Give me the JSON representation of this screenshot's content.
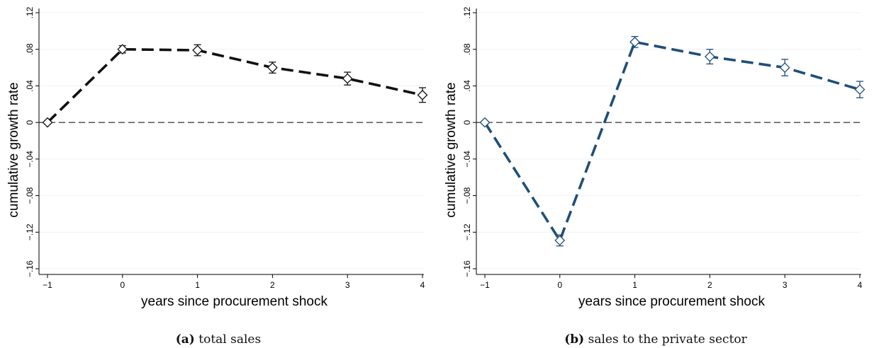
{
  "chart_data": [
    {
      "type": "line",
      "caption_tag": "(a)",
      "caption_text": "total sales",
      "xlabel": "years since procurement shock",
      "ylabel": "cumulative growth rate",
      "xlim": [
        -1,
        4
      ],
      "ylim": [
        -0.16,
        0.12
      ],
      "xticks": [
        -1,
        0,
        1,
        2,
        3,
        4
      ],
      "xtick_labels": [
        "−1",
        "0",
        "1",
        "2",
        "3",
        "4"
      ],
      "yticks": [
        -0.16,
        -0.12,
        -0.08,
        -0.04,
        0,
        0.04,
        0.08,
        0.12
      ],
      "ytick_labels": [
        "−.16",
        "−.12",
        "−.08",
        "−.04",
        "0",
        ".04",
        ".08",
        ".12"
      ],
      "reference_line_y": 0,
      "grid": true,
      "color": "#111111",
      "marker": "diamond",
      "series": [
        {
          "x": [
            -1,
            0,
            1,
            2,
            3,
            4
          ],
          "y": [
            0,
            0.08,
            0.079,
            0.06,
            0.048,
            0.03
          ],
          "ci_low": [
            0,
            0.076,
            0.073,
            0.054,
            0.041,
            0.022
          ],
          "ci_high": [
            0,
            0.084,
            0.085,
            0.066,
            0.055,
            0.038
          ]
        }
      ]
    },
    {
      "type": "line",
      "caption_tag": "(b)",
      "caption_text": "sales to the private sector",
      "xlabel": "years since procurement shock",
      "ylabel": "cumulative growth rate",
      "xlim": [
        -1,
        4
      ],
      "ylim": [
        -0.16,
        0.12
      ],
      "xticks": [
        -1,
        0,
        1,
        2,
        3,
        4
      ],
      "xtick_labels": [
        "−1",
        "0",
        "1",
        "2",
        "3",
        "4"
      ],
      "yticks": [
        -0.16,
        -0.12,
        -0.08,
        -0.04,
        0,
        0.04,
        0.08,
        0.12
      ],
      "ytick_labels": [
        "−.16",
        "−.12",
        "−.08",
        "−.04",
        "0",
        ".04",
        ".08",
        ".12"
      ],
      "reference_line_y": 0,
      "grid": true,
      "color": "#1f4e79",
      "marker": "diamond",
      "series": [
        {
          "x": [
            -1,
            0,
            1,
            2,
            3,
            4
          ],
          "y": [
            0,
            -0.129,
            0.088,
            0.072,
            0.06,
            0.036
          ],
          "ci_low": [
            0,
            -0.135,
            0.082,
            0.064,
            0.051,
            0.027
          ],
          "ci_high": [
            0,
            -0.123,
            0.094,
            0.08,
            0.069,
            0.045
          ]
        }
      ]
    }
  ]
}
